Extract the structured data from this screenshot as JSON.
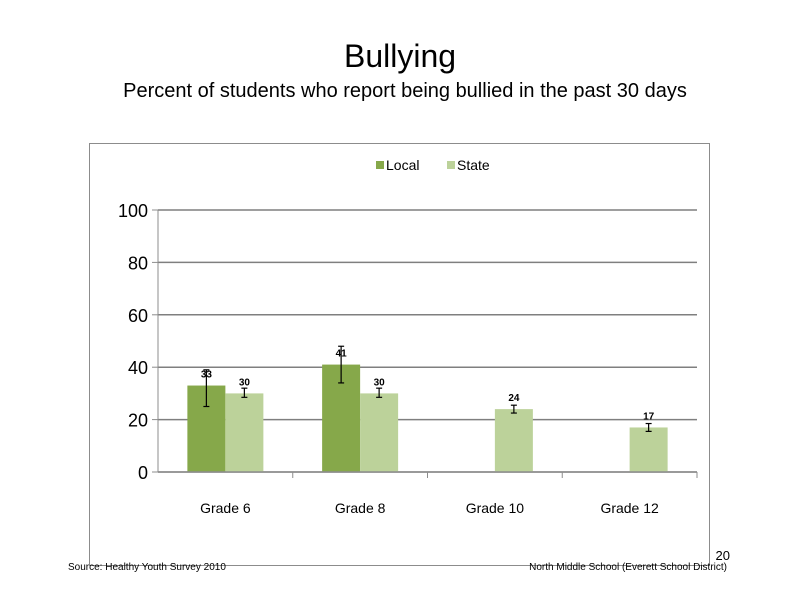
{
  "slide": {
    "title": "Bullying",
    "subtitle": "Percent of students who report being bullied in the past 30 days",
    "source": "Source: Healthy Youth Survey 2010",
    "school": "North Middle  School (Everett School District)",
    "page_number": "20"
  },
  "chart_data": {
    "type": "bar",
    "title": "",
    "xlabel": "",
    "ylabel": "",
    "ylim": [
      0,
      100
    ],
    "yticks": [
      0,
      20,
      40,
      60,
      80,
      100
    ],
    "grid": true,
    "legend_position": "top",
    "categories": [
      "Grade 6",
      "Grade 8",
      "Grade 10",
      "Grade 12"
    ],
    "series": [
      {
        "name": "Local",
        "color": "#86a84a",
        "values": [
          33,
          41,
          null,
          null
        ],
        "labels": [
          "33",
          "41",
          "",
          ""
        ],
        "error_low": [
          25,
          34,
          null,
          null
        ],
        "error_high": [
          39,
          48,
          null,
          null
        ]
      },
      {
        "name": "State",
        "color": "#bcd29a",
        "values": [
          30,
          30,
          24,
          17
        ],
        "labels": [
          "30",
          "30",
          "24",
          "17"
        ],
        "error_low": [
          28.5,
          28.5,
          22.5,
          15.5
        ],
        "error_high": [
          32,
          32,
          25.5,
          18.5
        ]
      }
    ]
  }
}
